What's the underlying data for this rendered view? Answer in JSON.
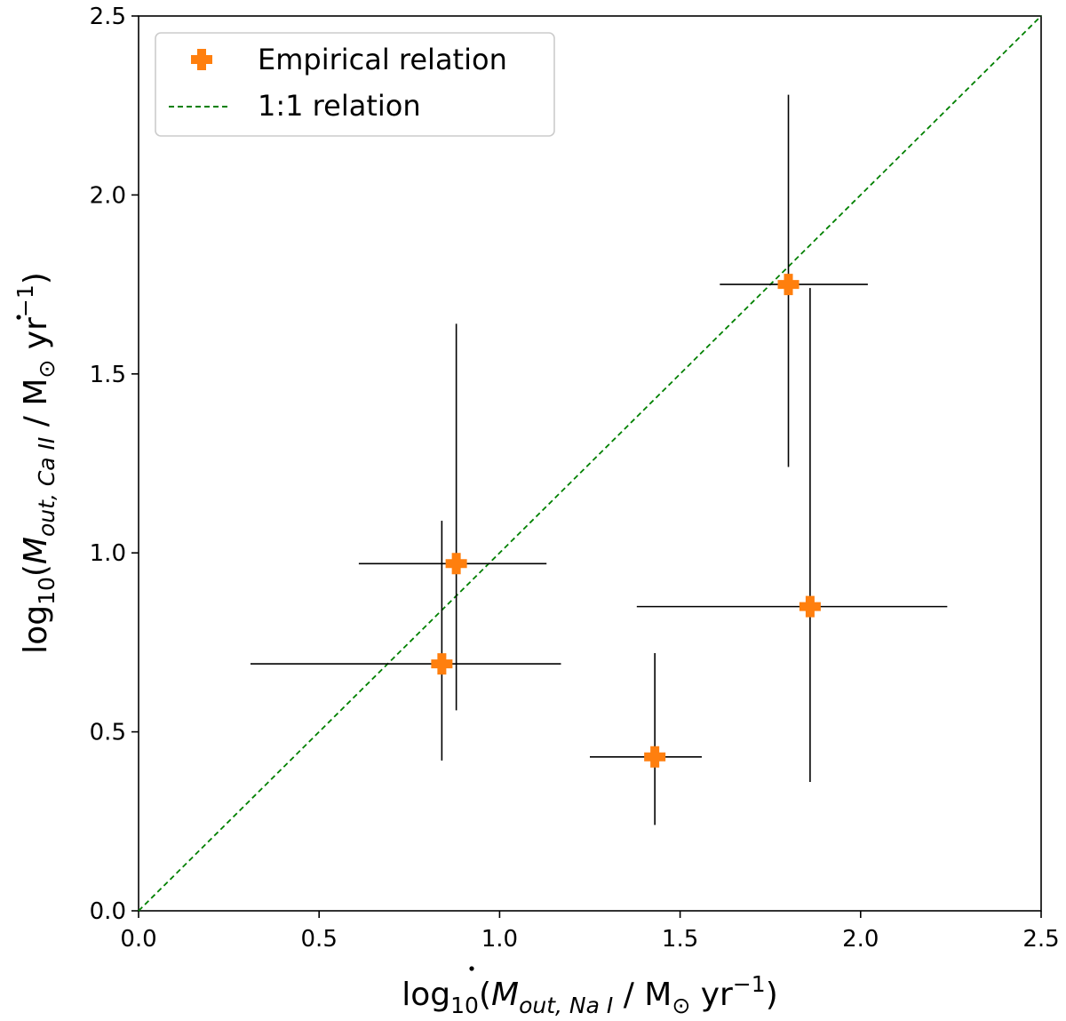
{
  "chart_data": {
    "type": "scatter",
    "title": "",
    "xlabel": {
      "prefix": "log",
      "prefix_sub": "10",
      "open": "(",
      "symbol": "M",
      "symbol_sub": "out, Na I",
      "units": " / M",
      "units_sub": "⊙",
      "units_tail": " yr",
      "units_sup": "−1",
      "close": ")"
    },
    "ylabel": {
      "prefix": "log",
      "prefix_sub": "10",
      "open": "(",
      "symbol": "M",
      "symbol_sub": "out, Ca II",
      "units": " / M",
      "units_sub": "⊙",
      "units_tail": " yr",
      "units_sup": "−1",
      "close": ")"
    },
    "xlim": [
      0.0,
      2.5
    ],
    "ylim": [
      0.0,
      2.5
    ],
    "xticks": [
      0.0,
      0.5,
      1.0,
      1.5,
      2.0,
      2.5
    ],
    "yticks": [
      0.0,
      0.5,
      1.0,
      1.5,
      2.0,
      2.5
    ],
    "tick_labels": [
      "0.0",
      "0.5",
      "1.0",
      "1.5",
      "2.0",
      "2.5"
    ],
    "grid": false,
    "legend_position": "top-left",
    "series": [
      {
        "name": "Empirical relation",
        "kind": "points-with-errorbars",
        "marker": "plus",
        "color": "#ff7f0e",
        "errorbar_color": "#000000",
        "points": [
          {
            "x": 1.8,
            "y": 1.75,
            "xerr": [
              0.19,
              0.22
            ],
            "yerr": [
              0.51,
              0.53
            ]
          },
          {
            "x": 0.88,
            "y": 0.97,
            "xerr": [
              0.27,
              0.25
            ],
            "yerr": [
              0.41,
              0.67
            ]
          },
          {
            "x": 0.84,
            "y": 0.69,
            "xerr": [
              0.53,
              0.33
            ],
            "yerr": [
              0.27,
              0.4
            ]
          },
          {
            "x": 1.86,
            "y": 0.85,
            "xerr": [
              0.48,
              0.38
            ],
            "yerr": [
              0.49,
              0.89
            ]
          },
          {
            "x": 1.43,
            "y": 0.43,
            "xerr": [
              0.18,
              0.13
            ],
            "yerr": [
              0.19,
              0.29
            ]
          }
        ]
      },
      {
        "name": "1:1 relation",
        "kind": "line",
        "style": "dashed",
        "color": "#008000",
        "x": [
          0.0,
          2.5
        ],
        "y": [
          0.0,
          2.5
        ]
      }
    ]
  }
}
